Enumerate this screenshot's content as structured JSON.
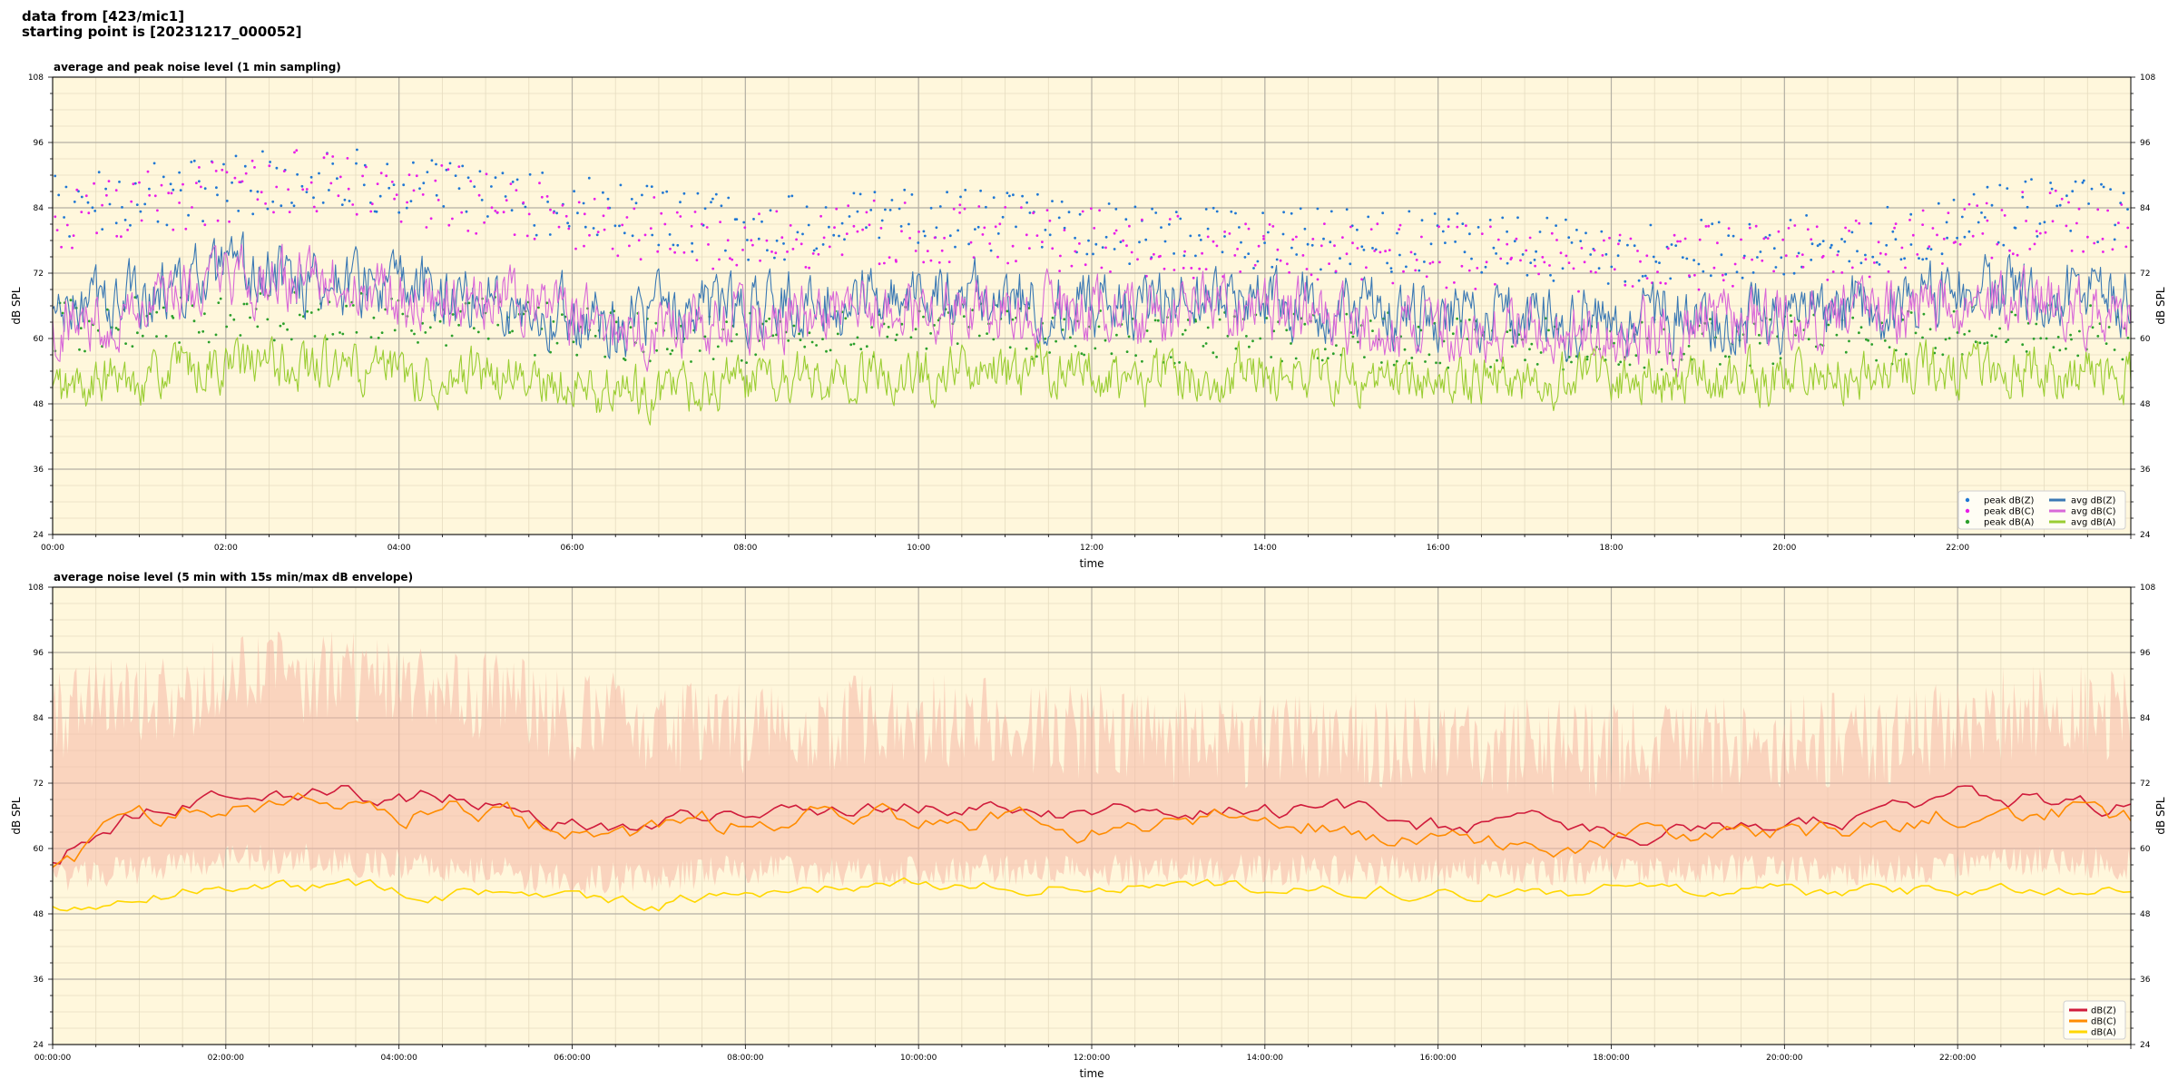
{
  "header": {
    "line1": "data from [423/mic1]",
    "line2": "starting point is [20231217_000052]"
  },
  "chart_data": [
    {
      "type": "line",
      "title": "average and peak noise level (1 min sampling)",
      "xlabel": "time",
      "ylabel": "dB SPL",
      "ylim": [
        24,
        108
      ],
      "yticks": [
        24,
        36,
        48,
        60,
        72,
        84,
        96,
        108
      ],
      "xlim_hours": [
        0,
        24
      ],
      "xtick_labels": [
        "00:00",
        "02:00",
        "04:00",
        "06:00",
        "08:00",
        "10:00",
        "12:00",
        "14:00",
        "16:00",
        "18:00",
        "20:00",
        "22:00"
      ],
      "grid": true,
      "background": "#fff7dc",
      "legend_position": "bottom-right",
      "legend_columns": 2,
      "series": [
        {
          "name": "peak dB(Z)",
          "kind": "scatter",
          "color": "#1f77d4",
          "profile_hours": [
            0,
            2,
            3,
            5,
            6,
            8,
            10,
            13,
            15,
            18,
            21,
            23,
            24
          ],
          "profile_values": [
            84,
            88,
            90,
            86,
            84,
            80,
            82,
            79,
            78,
            76,
            78,
            84,
            82
          ],
          "spread": 6
        },
        {
          "name": "peak dB(C)",
          "kind": "scatter",
          "color": "#e81ee8",
          "profile_hours": [
            0,
            2,
            3,
            5,
            6,
            8,
            10,
            13,
            15,
            18,
            21,
            23,
            24
          ],
          "profile_values": [
            82,
            87,
            89,
            85,
            82,
            78,
            80,
            77,
            76,
            74,
            76,
            82,
            80
          ],
          "spread": 6
        },
        {
          "name": "peak dB(A)",
          "kind": "scatter",
          "color": "#2ca02c",
          "profile_hours": [
            0,
            2,
            3,
            5,
            6,
            8,
            10,
            13,
            15,
            18,
            21,
            23,
            24
          ],
          "profile_values": [
            62,
            64,
            65,
            63,
            61,
            60,
            62,
            60,
            60,
            59,
            60,
            62,
            61
          ],
          "spread": 5
        },
        {
          "name": "avg dB(Z)",
          "kind": "line",
          "color": "#3a78b4",
          "profile_hours": [
            0,
            1,
            2,
            3,
            4,
            5,
            6,
            7,
            8,
            10,
            12,
            14,
            16,
            18,
            20,
            22,
            23,
            24
          ],
          "profile_values": [
            64,
            68,
            71,
            71,
            69,
            68,
            64,
            64,
            66,
            68,
            66,
            67,
            64,
            63,
            65,
            68,
            68,
            67
          ],
          "spread": 4
        },
        {
          "name": "avg dB(C)",
          "kind": "line",
          "color": "#d868d8",
          "profile_hours": [
            0,
            1,
            2,
            3,
            4,
            5,
            6,
            7,
            8,
            10,
            12,
            14,
            16,
            18,
            20,
            22,
            23,
            24
          ],
          "profile_values": [
            62,
            66,
            70,
            70,
            68,
            67,
            63,
            62,
            64,
            66,
            64,
            65,
            62,
            61,
            63,
            66,
            66,
            65
          ],
          "spread": 4
        },
        {
          "name": "avg dB(A)",
          "kind": "line",
          "color": "#9acd32",
          "profile_hours": [
            0,
            1,
            2,
            3,
            4,
            5,
            6,
            7,
            8,
            10,
            12,
            14,
            16,
            18,
            20,
            22,
            23,
            24
          ],
          "profile_values": [
            50,
            53,
            55,
            55,
            53,
            53,
            51,
            50,
            52,
            54,
            53,
            53,
            53,
            52,
            53,
            54,
            54,
            53
          ],
          "spread": 3
        }
      ]
    },
    {
      "type": "line",
      "title": "average noise level (5 min with 15s min/max dB envelope)",
      "xlabel": "time",
      "ylabel": "dB SPL",
      "ylim": [
        24,
        108
      ],
      "yticks": [
        24,
        36,
        48,
        60,
        72,
        84,
        96,
        108
      ],
      "xlim_hours": [
        0,
        24
      ],
      "xtick_labels": [
        "00:00:00",
        "02:00:00",
        "04:00:00",
        "06:00:00",
        "08:00:00",
        "10:00:00",
        "12:00:00",
        "14:00:00",
        "16:00:00",
        "18:00:00",
        "20:00:00",
        "22:00:00"
      ],
      "grid": true,
      "background": "#fff7dc",
      "legend_position": "bottom-right",
      "envelope": {
        "color": "#f6b8a6",
        "profile_hours": [
          0,
          2,
          3,
          5,
          6,
          8,
          10,
          13,
          15,
          18,
          21,
          23,
          24
        ],
        "max_values": [
          84,
          90,
          92,
          88,
          84,
          82,
          84,
          80,
          80,
          78,
          80,
          86,
          84
        ],
        "min_values": [
          54,
          58,
          58,
          56,
          54,
          56,
          56,
          56,
          56,
          56,
          56,
          58,
          57
        ]
      },
      "series": [
        {
          "name": "dB(Z)",
          "color": "#d01c3c",
          "profile_hours": [
            0,
            0.5,
            1,
            2,
            3,
            4,
            4.7,
            5,
            6,
            7,
            8,
            10,
            12,
            14,
            16,
            18,
            20,
            21,
            22,
            23,
            24
          ],
          "profile_values": [
            57,
            63,
            67,
            71,
            71,
            69,
            70,
            69,
            65,
            64,
            67,
            68,
            66,
            68,
            64,
            63,
            64,
            66,
            69,
            69,
            68
          ],
          "spread": 1.6
        },
        {
          "name": "dB(C)",
          "color": "#ff8c00",
          "profile_hours": [
            0,
            0.5,
            1,
            2,
            3,
            4,
            4.7,
            5,
            6,
            7,
            8,
            10,
            12,
            14,
            16,
            18,
            20,
            21,
            22,
            23,
            24
          ],
          "profile_values": [
            56,
            61,
            65,
            69,
            69,
            67,
            68,
            67,
            63,
            62,
            65,
            66,
            64,
            66,
            62,
            61,
            62,
            64,
            67,
            67,
            66
          ],
          "spread": 1.6
        },
        {
          "name": "dB(A)",
          "color": "#ffd700",
          "profile_hours": [
            0,
            0.5,
            1,
            2,
            3,
            4,
            5,
            6,
            7,
            8,
            10,
            12,
            14,
            16,
            18,
            20,
            22,
            23,
            24
          ],
          "profile_values": [
            49,
            50,
            51,
            53,
            53,
            52,
            52,
            50,
            50,
            52,
            54,
            53,
            53,
            52,
            52,
            52,
            52,
            52,
            53
          ],
          "spread": 1.0
        }
      ]
    }
  ]
}
